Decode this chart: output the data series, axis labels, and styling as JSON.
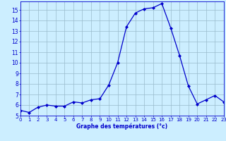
{
  "hours": [
    0,
    1,
    2,
    3,
    4,
    5,
    6,
    7,
    8,
    9,
    10,
    11,
    12,
    13,
    14,
    15,
    16,
    17,
    18,
    19,
    20,
    21,
    22,
    23
  ],
  "temps": [
    5.5,
    5.3,
    5.8,
    6.0,
    5.9,
    5.9,
    6.3,
    6.2,
    6.5,
    6.6,
    7.9,
    10.0,
    13.4,
    14.7,
    15.1,
    15.2,
    15.6,
    13.3,
    10.7,
    7.8,
    6.1,
    6.5,
    6.9,
    6.3
  ],
  "line_color": "#0000cc",
  "marker": "D",
  "marker_size": 2.0,
  "bg_color": "#cceeff",
  "grid_color": "#99bbcc",
  "xlabel": "Graphe des températures (°c)",
  "xlabel_color": "#0000cc",
  "tick_color": "#0000cc",
  "ylim": [
    5,
    15.8
  ],
  "yticks": [
    5,
    6,
    7,
    8,
    9,
    10,
    11,
    12,
    13,
    14,
    15
  ],
  "xlim": [
    0,
    23
  ],
  "xticks": [
    0,
    1,
    2,
    3,
    4,
    5,
    6,
    7,
    8,
    9,
    10,
    11,
    12,
    13,
    14,
    15,
    16,
    17,
    18,
    19,
    20,
    21,
    22,
    23
  ],
  "spine_color": "#0000cc",
  "linewidth": 0.9
}
